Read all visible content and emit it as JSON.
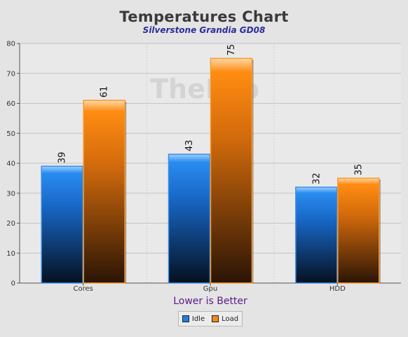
{
  "chart_data": {
    "type": "bar",
    "title": "Temperatures Chart",
    "subtitle": "Silverstone Grandia GD08",
    "xlabel": "Lower is Better",
    "ylabel": "",
    "ylim": [
      0,
      80
    ],
    "yticks": [
      0,
      10,
      20,
      30,
      40,
      50,
      60,
      70,
      80
    ],
    "categories": [
      "Cores",
      "Gpu",
      "HDD"
    ],
    "series": [
      {
        "name": "Idle",
        "values": [
          39,
          43,
          32
        ],
        "color": "#1e7fe0"
      },
      {
        "name": "Load",
        "values": [
          61,
          75,
          35
        ],
        "color": "#f08a1c"
      }
    ],
    "grid": true,
    "legend_position": "bottom-center",
    "watermark": "TheLab"
  }
}
